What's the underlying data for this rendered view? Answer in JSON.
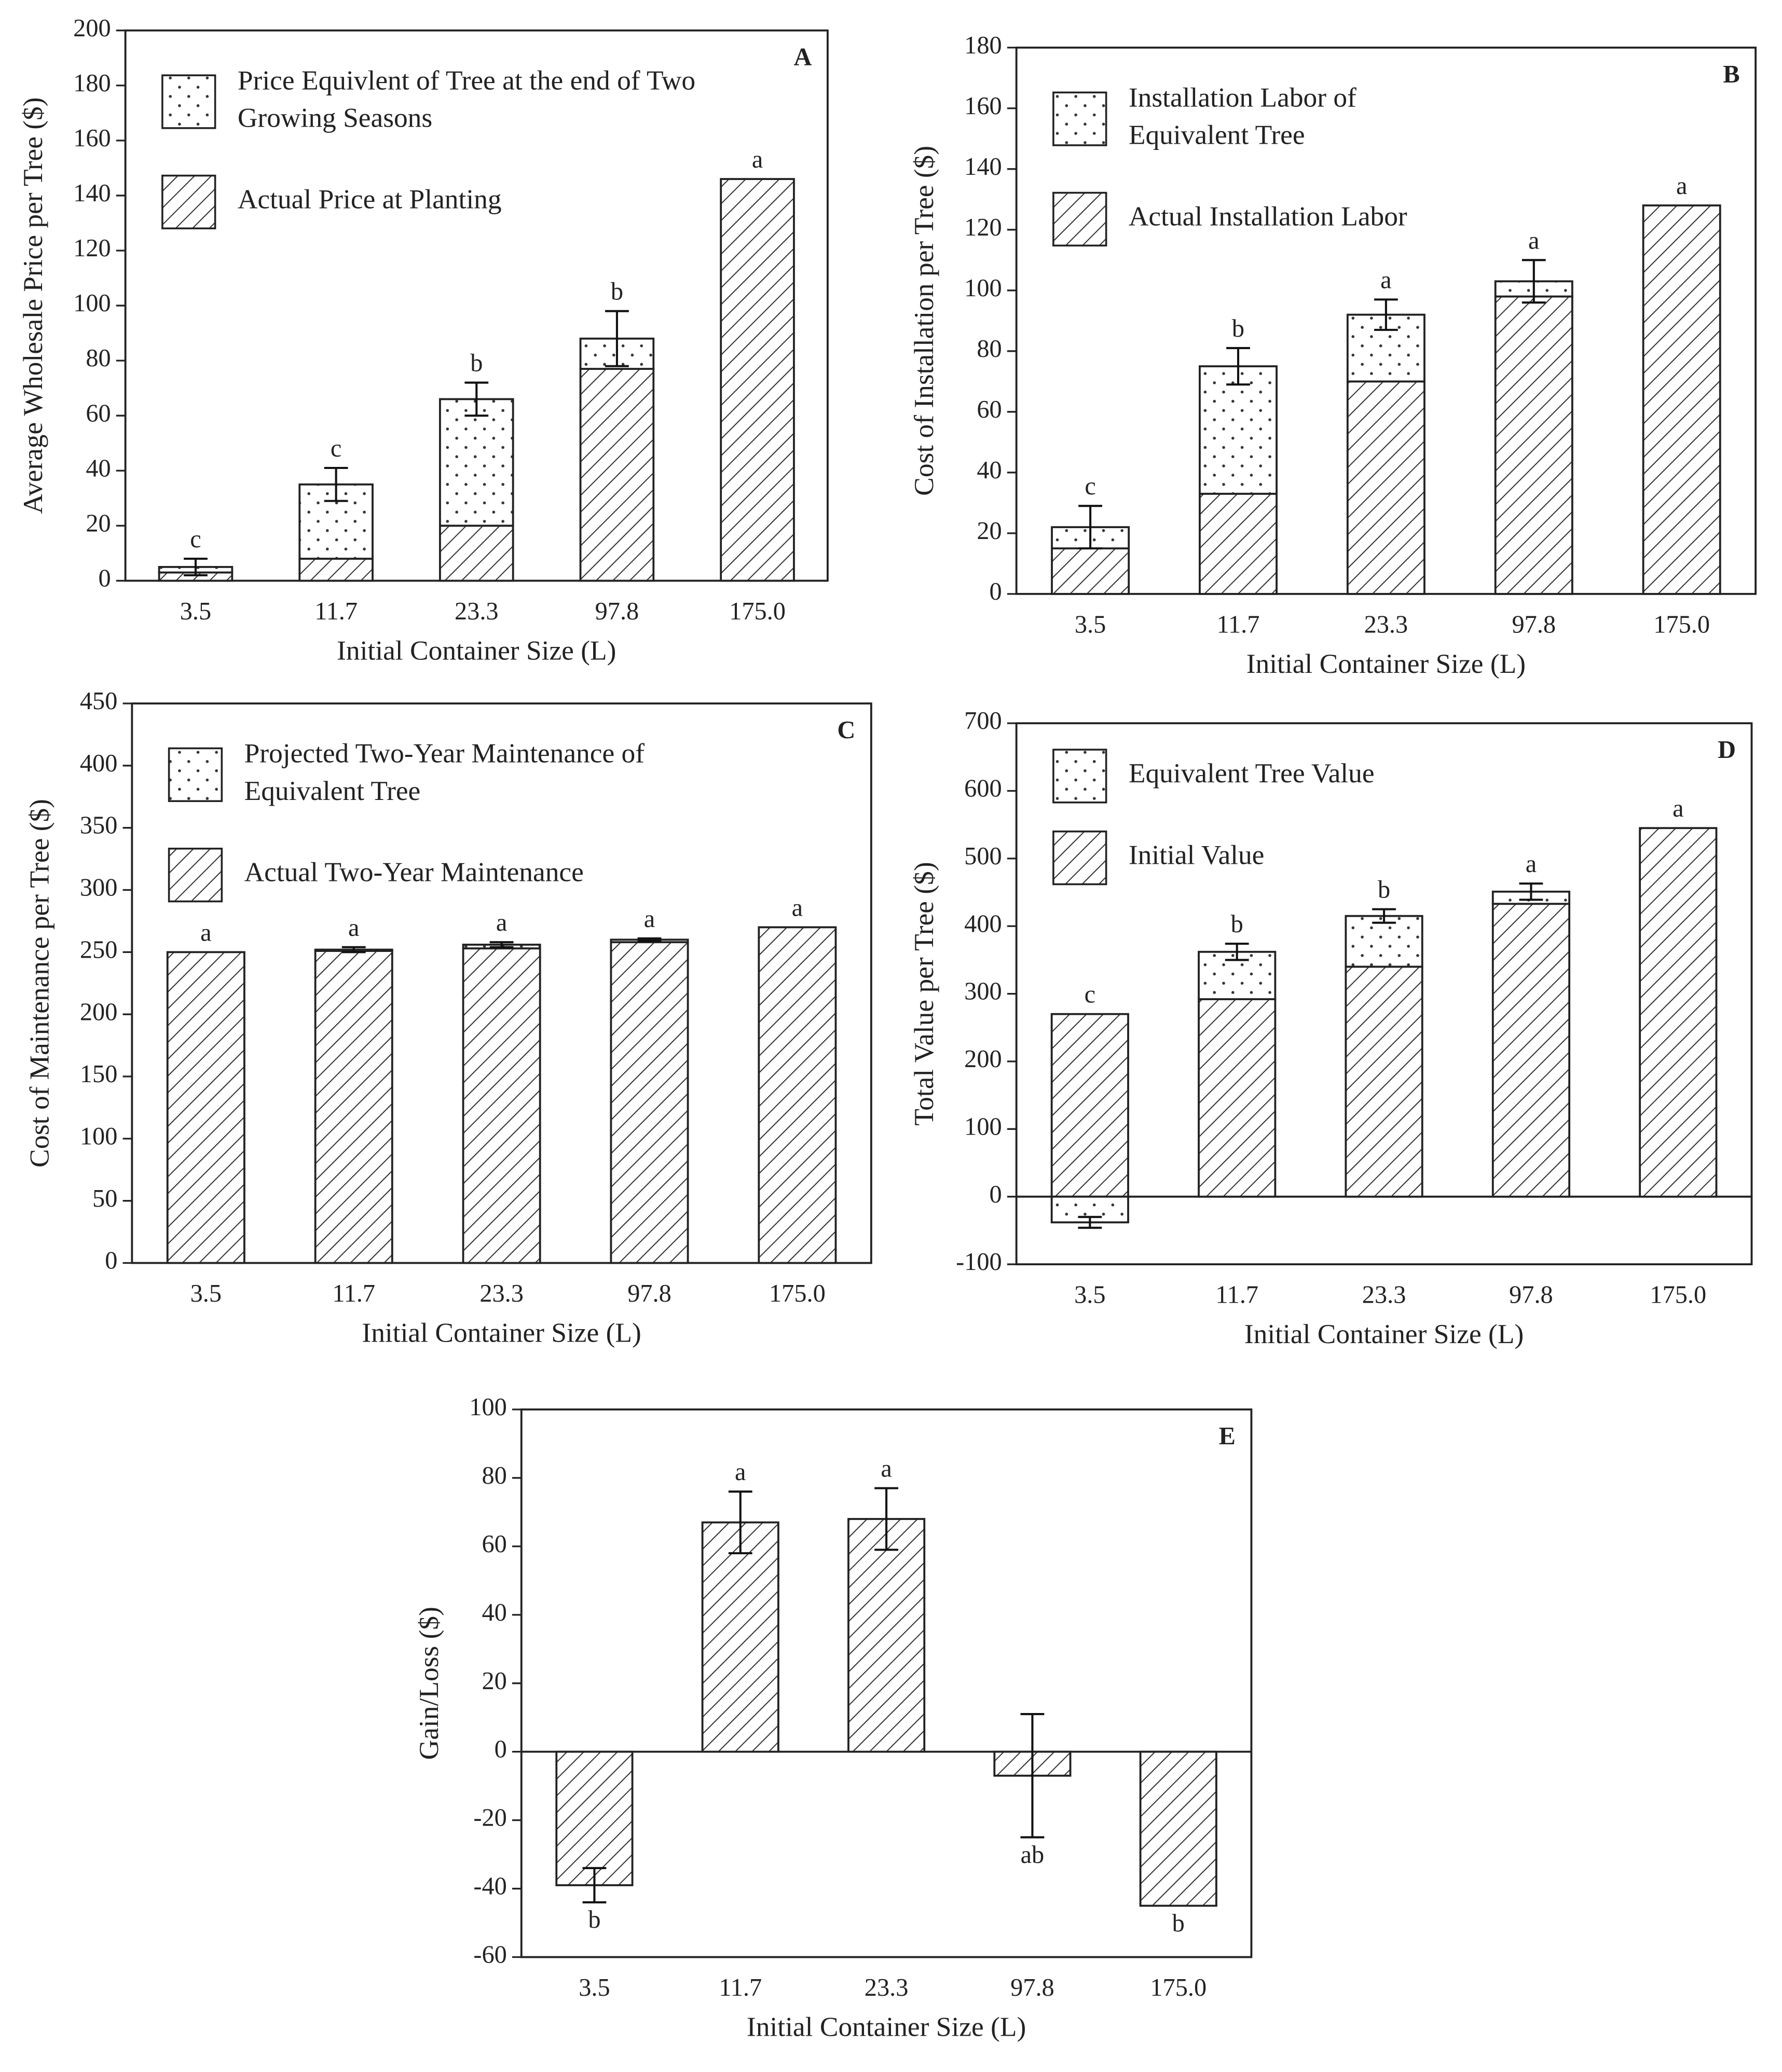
{
  "chart_data": [
    {
      "type": "bar",
      "panel": "A",
      "ylabel": "Average Wholesale Price per Tree ($)",
      "xlabel": "Initial Container Size (L)",
      "categories": [
        "3.5",
        "11.7",
        "23.3",
        "97.8",
        "175.0"
      ],
      "series": [
        {
          "name": "Actual Price at Planting",
          "fill": "hatch",
          "values": [
            3,
            8,
            20,
            77,
            146
          ]
        },
        {
          "name": "Price Equivlent of Tree at the end of Two Growing Seasons",
          "fill": "dots",
          "values": [
            2,
            27,
            46,
            11,
            0
          ]
        }
      ],
      "errors": [
        3,
        6,
        6,
        10,
        null
      ],
      "letters": [
        "c",
        "c",
        "b",
        "b",
        "a"
      ],
      "ylim": [
        0,
        200
      ],
      "yticks": [
        0,
        20,
        40,
        60,
        80,
        100,
        120,
        140,
        160,
        180,
        200
      ]
    },
    {
      "type": "bar",
      "panel": "B",
      "ylabel": "Cost of Installation per Tree ($)",
      "xlabel": "Initial Container Size (L)",
      "categories": [
        "3.5",
        "11.7",
        "23.3",
        "97.8",
        "175.0"
      ],
      "series": [
        {
          "name": "Actual Installation Labor",
          "fill": "hatch",
          "values": [
            15,
            33,
            70,
            98,
            128
          ]
        },
        {
          "name": "Installation Labor of Equivalent Tree",
          "fill": "dots",
          "values": [
            7,
            42,
            22,
            5,
            0
          ]
        }
      ],
      "errors": [
        7,
        6,
        5,
        7,
        null
      ],
      "letters": [
        "c",
        "b",
        "a",
        "a",
        "a"
      ],
      "ylim": [
        0,
        180
      ],
      "yticks": [
        0,
        20,
        40,
        60,
        80,
        100,
        120,
        140,
        160,
        180
      ]
    },
    {
      "type": "bar",
      "panel": "C",
      "ylabel": "Cost of Maintenance per Tree ($)",
      "xlabel": "Initial Container Size (L)",
      "categories": [
        "3.5",
        "11.7",
        "23.3",
        "97.8",
        "175.0"
      ],
      "series": [
        {
          "name": "Actual Two-Year Maintenance",
          "fill": "hatch",
          "values": [
            250,
            251,
            253,
            258,
            270
          ]
        },
        {
          "name": "Projected Two-Year Maintenance of Equivalent Tree",
          "fill": "dots",
          "values": [
            0,
            1,
            3,
            2,
            0
          ]
        }
      ],
      "errors": [
        null,
        2,
        2,
        1,
        null
      ],
      "letters": [
        "a",
        "a",
        "a",
        "a",
        "a"
      ],
      "ylim": [
        0,
        450
      ],
      "yticks": [
        0,
        50,
        100,
        150,
        200,
        250,
        300,
        350,
        400,
        450
      ]
    },
    {
      "type": "bar",
      "panel": "D",
      "ylabel": "Total Value per Tree ($)",
      "xlabel": "Initial Container Size (L)",
      "categories": [
        "3.5",
        "11.7",
        "23.3",
        "97.8",
        "175.0"
      ],
      "series": [
        {
          "name": "Initial Value",
          "fill": "hatch",
          "values": [
            270,
            292,
            340,
            433,
            545
          ]
        },
        {
          "name": "Equivalent Tree Value",
          "fill": "dots",
          "values": [
            -38,
            70,
            75,
            18,
            0
          ]
        }
      ],
      "errors": [
        8,
        12,
        10,
        12,
        null
      ],
      "letters": [
        "c",
        "b",
        "b",
        "a",
        "a"
      ],
      "ylim": [
        -100,
        700
      ],
      "yticks": [
        -100,
        0,
        100,
        200,
        300,
        400,
        500,
        600,
        700
      ]
    },
    {
      "type": "bar",
      "panel": "E",
      "ylabel": "Gain/Loss ($)",
      "xlabel": "Initial Container Size (L)",
      "categories": [
        "3.5",
        "11.7",
        "23.3",
        "97.8",
        "175.0"
      ],
      "series": [
        {
          "fill": "hatch",
          "values": [
            -39,
            67,
            68,
            -7,
            -45
          ]
        }
      ],
      "errors": [
        5,
        9,
        9,
        18,
        null
      ],
      "letters": [
        "b",
        "a",
        "a",
        "ab",
        "b"
      ],
      "ylim": [
        -60,
        100
      ],
      "yticks": [
        -60,
        -40,
        -20,
        0,
        20,
        40,
        60,
        80,
        100
      ]
    }
  ]
}
